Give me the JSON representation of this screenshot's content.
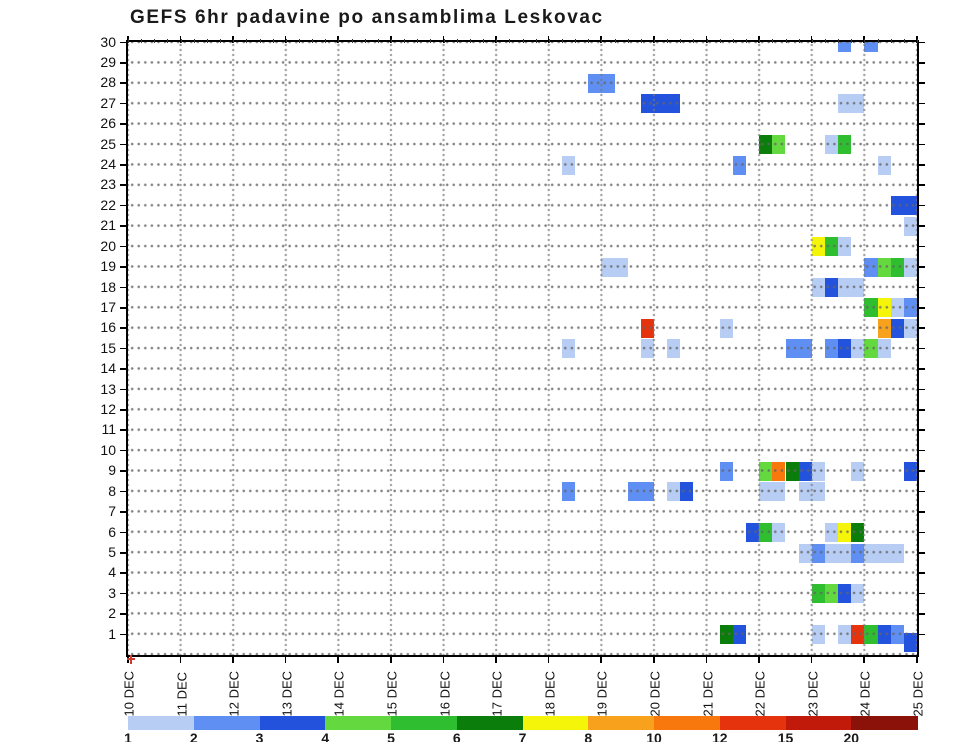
{
  "title": "GEFS 6hr padavine po ansamblima Leskovac",
  "palette": {
    "1": "#b7cdf4",
    "2": "#5f8ff2",
    "3": "#2353dc",
    "4": "#63d93f",
    "5": "#2fbe2f",
    "6": "#0b7d0b",
    "7": "#f5f50a",
    "8": "#f7a11c",
    "10": "#f8780d",
    "12": "#e5330e",
    "15": "#c21a0a",
    "20": "#8b1208"
  },
  "y_axis": {
    "labels": [
      "30",
      "29",
      "28",
      "27",
      "26",
      "25",
      "24",
      "23",
      "22",
      "21",
      "20",
      "19",
      "18",
      "17",
      "16",
      "14",
      "13",
      "12",
      "11",
      "10",
      "9",
      "8",
      "7",
      "6",
      "5",
      "4",
      "3",
      "2",
      "1"
    ],
    "all_rows_top_to_bottom": [
      "30",
      "29",
      "28",
      "27",
      "26",
      "25",
      "24",
      "23",
      "22",
      "21",
      "20",
      "19",
      "18",
      "17",
      "16",
      "15",
      "14",
      "13",
      "12",
      "11",
      "10",
      "9",
      "8",
      "7",
      "6",
      "5",
      "4",
      "3",
      "2",
      "1"
    ]
  },
  "x_axis": {
    "date_labels": [
      "10 DEC",
      "11 DEC",
      "12 DEC",
      "13 DEC",
      "14 DEC",
      "15 DEC",
      "16 DEC",
      "17 DEC",
      "18 DEC",
      "19 DEC",
      "20 DEC",
      "21 DEC",
      "22 DEC",
      "23 DEC",
      "24 DEC",
      "25 DEC"
    ]
  },
  "colorbar": {
    "boundary_labels": [
      "1",
      "2",
      "3",
      "4",
      "5",
      "6",
      "7",
      "8",
      "10",
      "12",
      "15",
      "20"
    ],
    "segment_keys": [
      "1",
      "2",
      "3",
      "4",
      "5",
      "6",
      "7",
      "8",
      "10",
      "12",
      "15",
      "20"
    ]
  },
  "chart_data": {
    "type": "heatmap",
    "title": "GEFS 6hr padavine po ansamblima Leskovac",
    "x_unit": "6-hour timeslot index, 0 = 10 DEC 00h, 4 slots per day, 60 slots to 25 DEC",
    "y_unit": "ensemble member (1-30)",
    "value_unit": "precipitation bin lower bound, mm/6h (maps to colorbar)",
    "x_range": [
      "10 DEC",
      "25 DEC"
    ],
    "y_range": [
      1,
      30
    ],
    "legend_position": "bottom",
    "grid": true,
    "cells": [
      {
        "r": 30,
        "c": 54,
        "s": 1,
        "v": 2
      },
      {
        "r": 30,
        "c": 56,
        "s": 1,
        "v": 2
      },
      {
        "r": 28,
        "c": 35,
        "s": 2,
        "v": 2
      },
      {
        "r": 27,
        "c": 39,
        "s": 3,
        "v": 3
      },
      {
        "r": 27,
        "c": 54,
        "s": 2,
        "v": 1
      },
      {
        "r": 25,
        "c": 48,
        "s": 1,
        "v": 6
      },
      {
        "r": 25,
        "c": 49,
        "s": 1,
        "v": 4
      },
      {
        "r": 25,
        "c": 53,
        "s": 1,
        "v": 1
      },
      {
        "r": 25,
        "c": 54,
        "s": 1,
        "v": 5
      },
      {
        "r": 24,
        "c": 33,
        "s": 1,
        "v": 1
      },
      {
        "r": 24,
        "c": 46,
        "s": 1,
        "v": 2
      },
      {
        "r": 24,
        "c": 57,
        "s": 1,
        "v": 1
      },
      {
        "r": 22,
        "c": 58,
        "s": 2,
        "v": 3
      },
      {
        "r": 21,
        "c": 59,
        "s": 1,
        "v": 1
      },
      {
        "r": 20,
        "c": 52,
        "s": 1,
        "v": 7
      },
      {
        "r": 20,
        "c": 53,
        "s": 1,
        "v": 5
      },
      {
        "r": 20,
        "c": 54,
        "s": 1,
        "v": 1
      },
      {
        "r": 19,
        "c": 36,
        "s": 2,
        "v": 1
      },
      {
        "r": 19,
        "c": 56,
        "s": 1,
        "v": 2
      },
      {
        "r": 19,
        "c": 57,
        "s": 1,
        "v": 4
      },
      {
        "r": 19,
        "c": 58,
        "s": 1,
        "v": 5
      },
      {
        "r": 19,
        "c": 59,
        "s": 1,
        "v": 1
      },
      {
        "r": 18,
        "c": 52,
        "s": 1,
        "v": 1
      },
      {
        "r": 18,
        "c": 53,
        "s": 1,
        "v": 3
      },
      {
        "r": 18,
        "c": 54,
        "s": 2,
        "v": 1
      },
      {
        "r": 17,
        "c": 56,
        "s": 1,
        "v": 5
      },
      {
        "r": 17,
        "c": 57,
        "s": 1,
        "v": 7
      },
      {
        "r": 17,
        "c": 58,
        "s": 1,
        "v": 1
      },
      {
        "r": 17,
        "c": 59,
        "s": 1,
        "v": 2
      },
      {
        "r": 16,
        "c": 39,
        "s": 1,
        "v": 12
      },
      {
        "r": 16,
        "c": 45,
        "s": 1,
        "v": 1
      },
      {
        "r": 16,
        "c": 57,
        "s": 1,
        "v": 8
      },
      {
        "r": 16,
        "c": 58,
        "s": 1,
        "v": 3
      },
      {
        "r": 16,
        "c": 59,
        "s": 1,
        "v": 1
      },
      {
        "r": 15,
        "c": 33,
        "s": 1,
        "v": 1
      },
      {
        "r": 15,
        "c": 39,
        "s": 1,
        "v": 1
      },
      {
        "r": 15,
        "c": 41,
        "s": 1,
        "v": 1
      },
      {
        "r": 15,
        "c": 50,
        "s": 2,
        "v": 2
      },
      {
        "r": 15,
        "c": 53,
        "s": 1,
        "v": 2
      },
      {
        "r": 15,
        "c": 54,
        "s": 1,
        "v": 3
      },
      {
        "r": 15,
        "c": 55,
        "s": 1,
        "v": 1
      },
      {
        "r": 15,
        "c": 56,
        "s": 1,
        "v": 4
      },
      {
        "r": 15,
        "c": 57,
        "s": 1,
        "v": 1
      },
      {
        "r": 9,
        "c": 45,
        "s": 1,
        "v": 2
      },
      {
        "r": 9,
        "c": 48,
        "s": 1,
        "v": 4
      },
      {
        "r": 9,
        "c": 49,
        "s": 1,
        "v": 10
      },
      {
        "r": 9,
        "c": 50,
        "s": 1,
        "v": 6
      },
      {
        "r": 9,
        "c": 51,
        "s": 1,
        "v": 3
      },
      {
        "r": 9,
        "c": 52,
        "s": 1,
        "v": 1
      },
      {
        "r": 9,
        "c": 55,
        "s": 1,
        "v": 1
      },
      {
        "r": 9,
        "c": 59,
        "s": 1,
        "v": 3
      },
      {
        "r": 8,
        "c": 33,
        "s": 1,
        "v": 2
      },
      {
        "r": 8,
        "c": 38,
        "s": 2,
        "v": 2
      },
      {
        "r": 8,
        "c": 41,
        "s": 1,
        "v": 1
      },
      {
        "r": 8,
        "c": 42,
        "s": 1,
        "v": 3
      },
      {
        "r": 8,
        "c": 48,
        "s": 2,
        "v": 1
      },
      {
        "r": 8,
        "c": 51,
        "s": 2,
        "v": 1
      },
      {
        "r": 6,
        "c": 47,
        "s": 1,
        "v": 3
      },
      {
        "r": 6,
        "c": 48,
        "s": 1,
        "v": 5
      },
      {
        "r": 6,
        "c": 49,
        "s": 1,
        "v": 1
      },
      {
        "r": 6,
        "c": 53,
        "s": 1,
        "v": 1
      },
      {
        "r": 6,
        "c": 54,
        "s": 1,
        "v": 7
      },
      {
        "r": 6,
        "c": 55,
        "s": 1,
        "v": 6
      },
      {
        "r": 5,
        "c": 51,
        "s": 1,
        "v": 1
      },
      {
        "r": 5,
        "c": 52,
        "s": 1,
        "v": 2
      },
      {
        "r": 5,
        "c": 53,
        "s": 2,
        "v": 1
      },
      {
        "r": 5,
        "c": 55,
        "s": 1,
        "v": 2
      },
      {
        "r": 5,
        "c": 56,
        "s": 3,
        "v": 1
      },
      {
        "r": 3,
        "c": 52,
        "s": 1,
        "v": 5
      },
      {
        "r": 3,
        "c": 53,
        "s": 1,
        "v": 4
      },
      {
        "r": 3,
        "c": 54,
        "s": 1,
        "v": 3
      },
      {
        "r": 3,
        "c": 55,
        "s": 1,
        "v": 1
      },
      {
        "r": 1,
        "c": 45,
        "s": 1,
        "v": 6
      },
      {
        "r": 1,
        "c": 46,
        "s": 1,
        "v": 3
      },
      {
        "r": 1,
        "c": 52,
        "s": 1,
        "v": 1
      },
      {
        "r": 1,
        "c": 54,
        "s": 1,
        "v": 1
      },
      {
        "r": 1,
        "c": 55,
        "s": 1,
        "v": 12
      },
      {
        "r": 1,
        "c": 56,
        "s": 1,
        "v": 5
      },
      {
        "r": 1,
        "c": 57,
        "s": 1,
        "v": 3
      },
      {
        "r": 1,
        "c": 58,
        "s": 1,
        "v": 2
      },
      {
        "r": 0.6,
        "c": 59,
        "s": 1,
        "v": 3
      }
    ]
  }
}
